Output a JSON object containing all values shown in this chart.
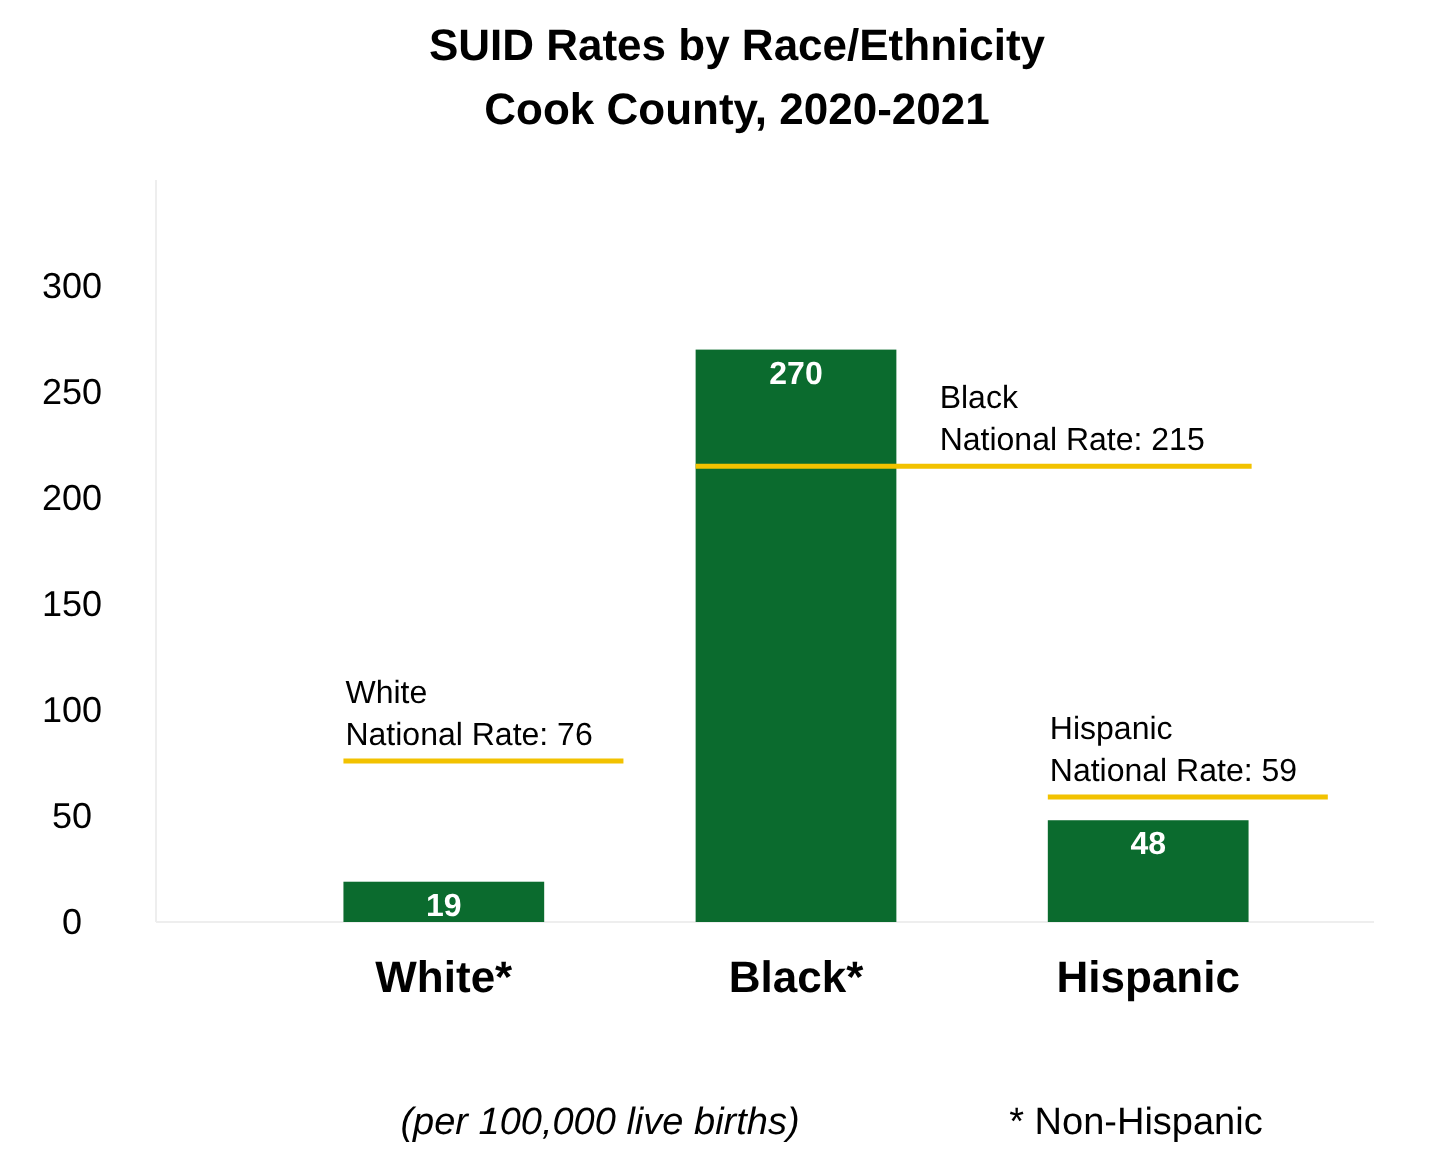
{
  "chart_data": {
    "type": "bar",
    "title": "SUID Rates by Race/Ethnicity\nCook County, 2020-2021",
    "categories": [
      "White*",
      "Black*",
      "Hispanic"
    ],
    "values": [
      19,
      270,
      48
    ],
    "color": "#0b6b2e",
    "data_labels": true,
    "ylim": [
      0,
      350
    ],
    "yticks": [
      0,
      50,
      100,
      150,
      200,
      250,
      300
    ],
    "grid": false,
    "ref_lines": [
      {
        "axis": "y",
        "value": 76,
        "label": "White\nNational Rate: 76",
        "color": "#f2c200"
      },
      {
        "axis": "y",
        "value": 215,
        "label": "Black\nNational Rate: 215",
        "color": "#f2c200"
      },
      {
        "axis": "y",
        "value": 59,
        "label": "Hispanic\nNational Rate: 59",
        "color": "#f2c200"
      }
    ],
    "annotations": [
      "(per 100,000 live births)",
      "* Non-Hispanic"
    ]
  }
}
